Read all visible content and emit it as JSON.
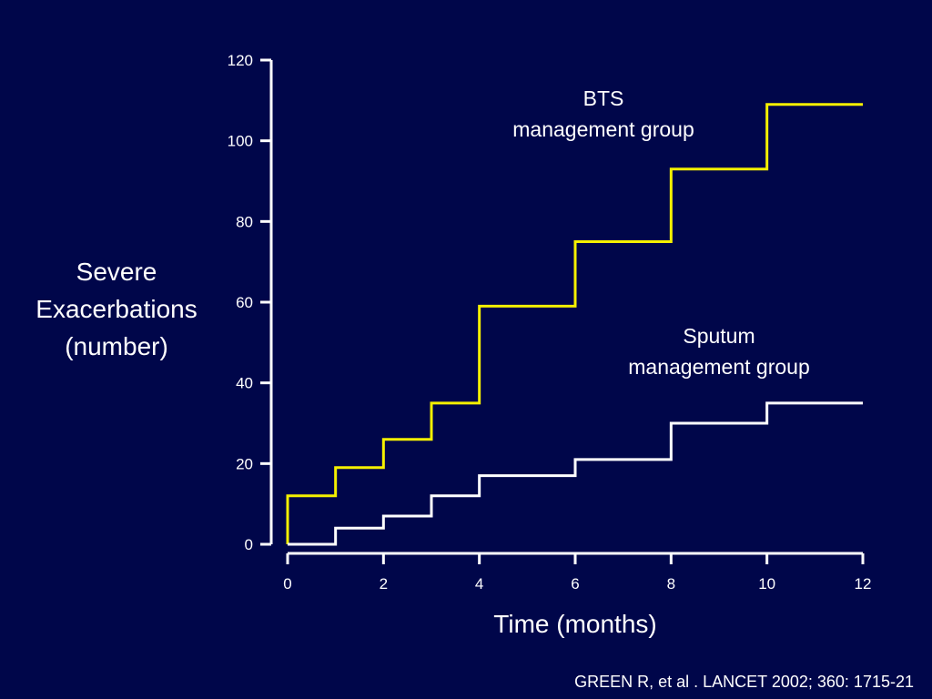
{
  "chart_data": {
    "type": "line",
    "step": true,
    "xlabel": "Time (months)",
    "ylabel": [
      "Severe",
      "Exacerbations",
      "(number)"
    ],
    "xlim": [
      0,
      12
    ],
    "ylim": [
      0,
      120
    ],
    "x_ticks": [
      0,
      2,
      4,
      6,
      8,
      10,
      12
    ],
    "y_ticks": [
      0,
      20,
      40,
      60,
      80,
      100,
      120
    ],
    "grid": false,
    "series": [
      {
        "name": [
          "BTS",
          "management group"
        ],
        "color": "#f5f000",
        "x": [
          0,
          1,
          2,
          3,
          4,
          6,
          8,
          10,
          12
        ],
        "y": [
          12,
          19,
          26,
          35,
          59,
          75,
          93,
          109,
          109
        ]
      },
      {
        "name": [
          "Sputum",
          "management group"
        ],
        "color": "#ffffff",
        "x": [
          0,
          1,
          2,
          3,
          4,
          6,
          8,
          10,
          12
        ],
        "y": [
          0,
          4,
          7,
          12,
          17,
          21,
          30,
          35,
          35
        ]
      }
    ]
  },
  "citation": "GREEN  R, et al .  LANCET  2002;  360: 1715-21"
}
